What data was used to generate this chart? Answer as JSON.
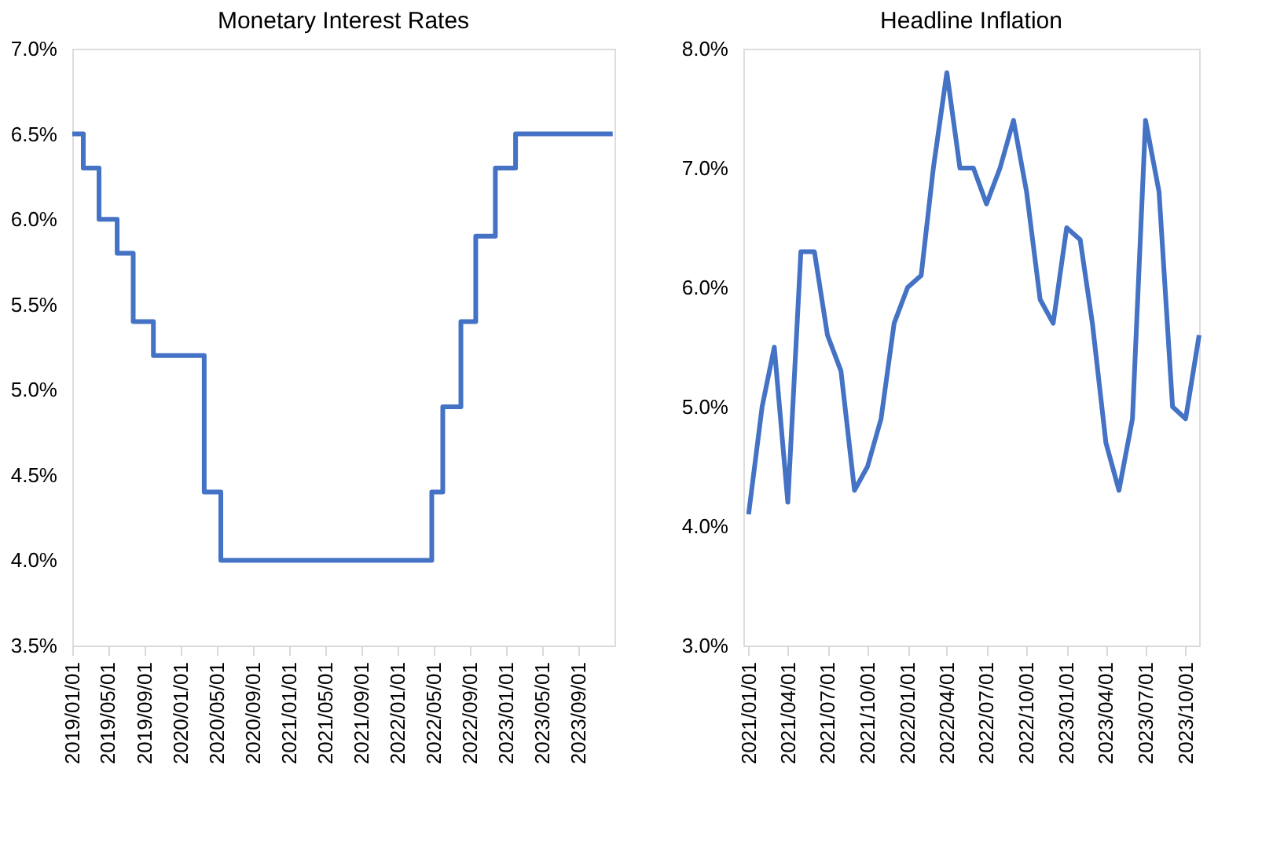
{
  "chart_data": [
    {
      "type": "step",
      "title": "Monetary Interest Rates",
      "x": [
        "2019-01-01",
        "2019-02-07",
        "2019-04-01",
        "2019-06-01",
        "2019-07-25",
        "2019-10-01",
        "2020-03-20",
        "2020-05-15",
        "2022-04-25",
        "2022-06-01",
        "2022-08-01",
        "2022-09-20",
        "2022-11-25",
        "2023-02-01",
        "2023-12-25"
      ],
      "series": [
        {
          "color": "#4472c4",
          "values": [
            6.5,
            6.3,
            6.0,
            5.8,
            5.4,
            5.2,
            4.4,
            4.0,
            4.4,
            4.9,
            5.4,
            5.9,
            6.3,
            6.5,
            6.5
          ]
        }
      ],
      "xlim": [
        "2019-01-01",
        "2023-12-31"
      ],
      "xticks": [
        {
          "value": "2019-01-01",
          "label": "2019/01/01"
        },
        {
          "value": "2019-05-01",
          "label": "2019/05/01"
        },
        {
          "value": "2019-09-01",
          "label": "2019/09/01"
        },
        {
          "value": "2020-01-01",
          "label": "2020/01/01"
        },
        {
          "value": "2020-05-01",
          "label": "2020/05/01"
        },
        {
          "value": "2020-09-01",
          "label": "2020/09/01"
        },
        {
          "value": "2021-01-01",
          "label": "2021/01/01"
        },
        {
          "value": "2021-05-01",
          "label": "2021/05/01"
        },
        {
          "value": "2021-09-01",
          "label": "2021/09/01"
        },
        {
          "value": "2022-01-01",
          "label": "2022/01/01"
        },
        {
          "value": "2022-05-01",
          "label": "2022/05/01"
        },
        {
          "value": "2022-09-01",
          "label": "2022/09/01"
        },
        {
          "value": "2023-01-01",
          "label": "2023/01/01"
        },
        {
          "value": "2023-05-01",
          "label": "2023/05/01"
        },
        {
          "value": "2023-09-01",
          "label": "2023/09/01"
        }
      ],
      "ylim": [
        3.5,
        7.0
      ],
      "yticks": [
        {
          "value": 3.5,
          "label": "3.5%"
        },
        {
          "value": 4.0,
          "label": "4.0%"
        },
        {
          "value": 4.5,
          "label": "4.5%"
        },
        {
          "value": 5.0,
          "label": "5.0%"
        },
        {
          "value": 5.5,
          "label": "5.5%"
        },
        {
          "value": 6.0,
          "label": "6.0%"
        },
        {
          "value": 6.5,
          "label": "6.5%"
        },
        {
          "value": 7.0,
          "label": "7.0%"
        }
      ],
      "grid": false
    },
    {
      "type": "line",
      "title": "Headline Inflation",
      "x": [
        "2021-01",
        "2021-02",
        "2021-03",
        "2021-04",
        "2021-05",
        "2021-06",
        "2021-07",
        "2021-08",
        "2021-09",
        "2021-10",
        "2021-11",
        "2021-12",
        "2022-01",
        "2022-02",
        "2022-03",
        "2022-04",
        "2022-05",
        "2022-06",
        "2022-07",
        "2022-08",
        "2022-09",
        "2022-10",
        "2022-11",
        "2022-12",
        "2023-01",
        "2023-02",
        "2023-03",
        "2023-04",
        "2023-05",
        "2023-06",
        "2023-07",
        "2023-08",
        "2023-09",
        "2023-10",
        "2023-11"
      ],
      "series": [
        {
          "color": "#4472c4",
          "values": [
            4.1,
            5.0,
            5.5,
            4.2,
            6.3,
            6.3,
            5.6,
            5.3,
            4.3,
            4.5,
            4.9,
            5.7,
            6.0,
            6.1,
            7.0,
            7.8,
            7.0,
            7.0,
            6.7,
            7.0,
            7.4,
            6.8,
            5.9,
            5.7,
            6.5,
            6.4,
            5.7,
            4.7,
            4.3,
            4.9,
            7.4,
            6.8,
            5.0,
            4.9,
            5.6
          ]
        }
      ],
      "xlim": [
        "2020-12-20",
        "2023-11-01"
      ],
      "xticks": [
        {
          "value": "2021-01-01",
          "label": "2021/01/01"
        },
        {
          "value": "2021-04-01",
          "label": "2021/04/01"
        },
        {
          "value": "2021-07-01",
          "label": "2021/07/01"
        },
        {
          "value": "2021-10-01",
          "label": "2021/10/01"
        },
        {
          "value": "2022-01-01",
          "label": "2022/01/01"
        },
        {
          "value": "2022-04-01",
          "label": "2022/04/01"
        },
        {
          "value": "2022-07-01",
          "label": "2022/07/01"
        },
        {
          "value": "2022-10-01",
          "label": "2022/10/01"
        },
        {
          "value": "2023-01-01",
          "label": "2023/01/01"
        },
        {
          "value": "2023-04-01",
          "label": "2023/04/01"
        },
        {
          "value": "2023-07-01",
          "label": "2023/07/01"
        },
        {
          "value": "2023-10-01",
          "label": "2023/10/01"
        }
      ],
      "ylim": [
        3.0,
        8.0
      ],
      "yticks": [
        {
          "value": 3.0,
          "label": "3.0%"
        },
        {
          "value": 4.0,
          "label": "4.0%"
        },
        {
          "value": 5.0,
          "label": "5.0%"
        },
        {
          "value": 6.0,
          "label": "6.0%"
        },
        {
          "value": 7.0,
          "label": "7.0%"
        },
        {
          "value": 8.0,
          "label": "8.0%"
        }
      ],
      "grid": false
    }
  ]
}
